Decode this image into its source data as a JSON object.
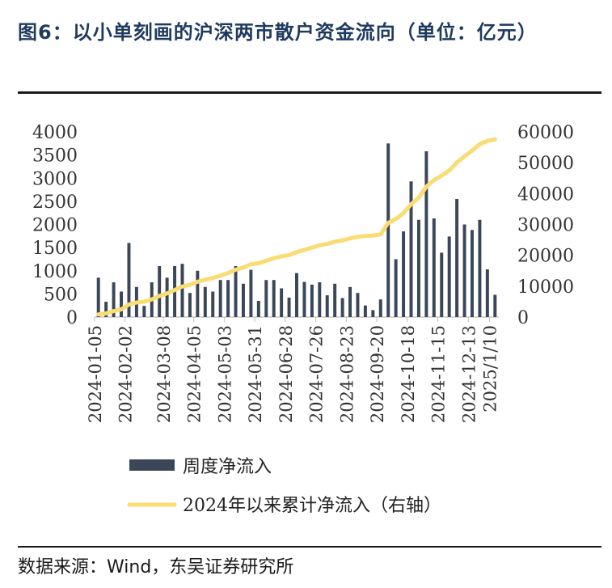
{
  "title": "图6：以小单刻画的沪深两市散户资金流向（单位：亿元）",
  "source": "数据来源：Wind，东吴证券研究所",
  "colors": {
    "bar": "#3b4658",
    "line": "#f9dc72",
    "title": "#1f3a5f"
  },
  "chart_data": {
    "type": "bar+line",
    "title": "",
    "x_tick_labels": [
      "2024-01-05",
      "2024-02-02",
      "2024-03-08",
      "2024-04-05",
      "2024-05-03",
      "2024-05-31",
      "2024-06-28",
      "2024-07-26",
      "2024-08-23",
      "2024-09-20",
      "2024-10-18",
      "2024-11-15",
      "2024-12-13",
      "2025/1/10"
    ],
    "y_left": {
      "ticks": [
        0,
        500,
        1000,
        1500,
        2000,
        2500,
        3000,
        3500,
        4000
      ],
      "ylim": [
        0,
        4000
      ]
    },
    "y_right": {
      "ticks": [
        0,
        10000,
        20000,
        30000,
        40000,
        50000,
        60000
      ],
      "ylim": [
        0,
        60000
      ]
    },
    "legend_position": "bottom",
    "series": [
      {
        "name": "周度净流入",
        "kind": "bar",
        "axis": "left",
        "values": [
          850,
          330,
          750,
          550,
          1600,
          650,
          240,
          750,
          1100,
          850,
          1100,
          1150,
          520,
          1000,
          650,
          550,
          800,
          800,
          1100,
          720,
          1020,
          350,
          800,
          800,
          620,
          420,
          950,
          760,
          700,
          750,
          470,
          720,
          410,
          650,
          520,
          250,
          150,
          380,
          3750,
          1250,
          1850,
          2930,
          2100,
          3580,
          2130,
          1390,
          1740,
          2550,
          2000,
          1880,
          2100,
          1030,
          480
        ],
        "bar_start_index": 0
      },
      {
        "name": "2024年以来累计净流入（右轴）",
        "kind": "line",
        "axis": "right",
        "values": [
          850,
          1180,
          1930,
          2480,
          4080,
          4730,
          4970,
          5720,
          6820,
          7670,
          8770,
          9920,
          10440,
          11440,
          12090,
          12640,
          13440,
          14240,
          15340,
          16060,
          17080,
          17430,
          18230,
          19030,
          19650,
          20070,
          21020,
          21780,
          22480,
          23230,
          23700,
          24420,
          24830,
          25480,
          26000,
          26250,
          26400,
          26780,
          30530,
          31780,
          33630,
          36560,
          38660,
          42240,
          44370,
          45760,
          47500,
          50050,
          52050,
          53930,
          56030,
          57060,
          57540
        ]
      }
    ]
  }
}
